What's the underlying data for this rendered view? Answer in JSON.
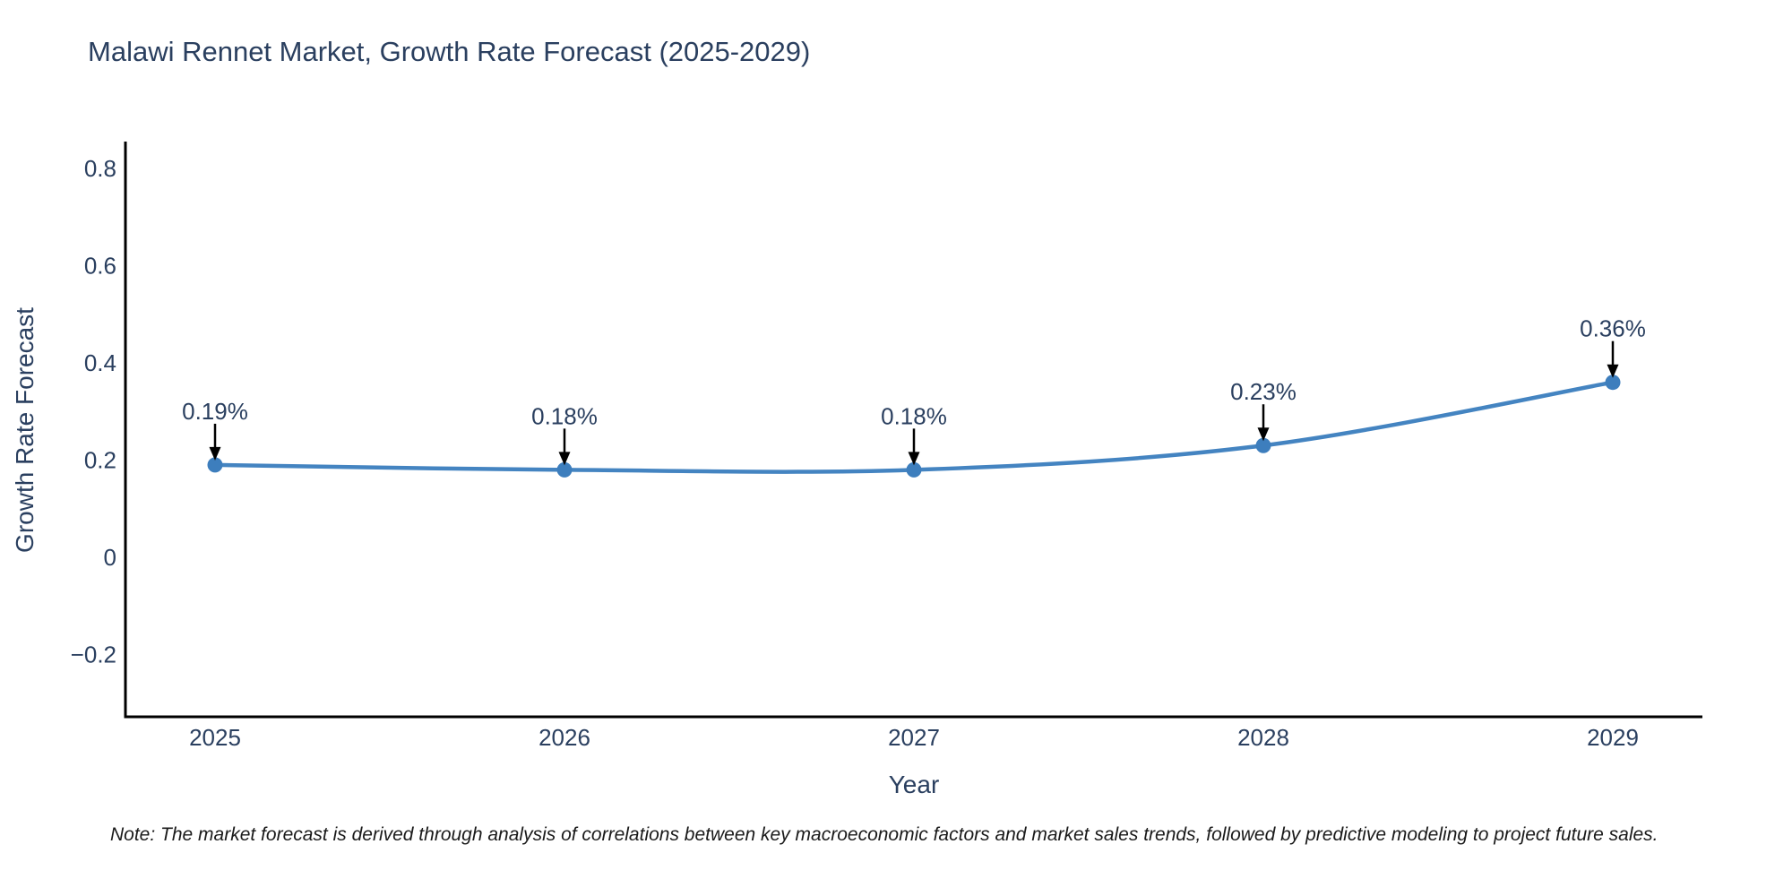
{
  "title": "Malawi Rennet Market, Growth Rate Forecast (2025-2029)",
  "note": "Note: The market forecast is derived through analysis of correlations between key macroeconomic factors and market sales trends, followed by predictive modeling to project future sales.",
  "chart_data": {
    "type": "line",
    "title": "Malawi Rennet Market, Growth Rate Forecast (2025-2029)",
    "xlabel": "Year",
    "ylabel": "Growth Rate Forecast",
    "x": [
      2025,
      2026,
      2027,
      2028,
      2029
    ],
    "xtick_labels": [
      "2025",
      "2026",
      "2027",
      "2028",
      "2029"
    ],
    "series": [
      {
        "name": "Growth Rate Forecast",
        "values": [
          0.19,
          0.18,
          0.18,
          0.23,
          0.36
        ]
      }
    ],
    "point_labels": [
      "0.19%",
      "0.18%",
      "0.18%",
      "0.23%",
      "0.36%"
    ],
    "ytick_values": [
      0.8,
      0.6,
      0.4,
      0.2,
      0,
      -0.2
    ],
    "ytick_labels": [
      "0.8",
      "0.6",
      "0.4",
      "0.2",
      "0",
      "−0.2"
    ],
    "ylim": [
      -0.33,
      0.85
    ],
    "xlim": [
      2024.74,
      2029.26
    ],
    "grid": false,
    "legend": "none",
    "line_shape": "spline",
    "marker": "circle",
    "annotation_style": "value label above each point with downward black arrow",
    "colors": {
      "line": "#4484c1",
      "marker": "#3d7ebd",
      "axis": "#000000",
      "text": "#2a3f5f",
      "arrow": "#000000",
      "background": "#ffffff"
    }
  }
}
